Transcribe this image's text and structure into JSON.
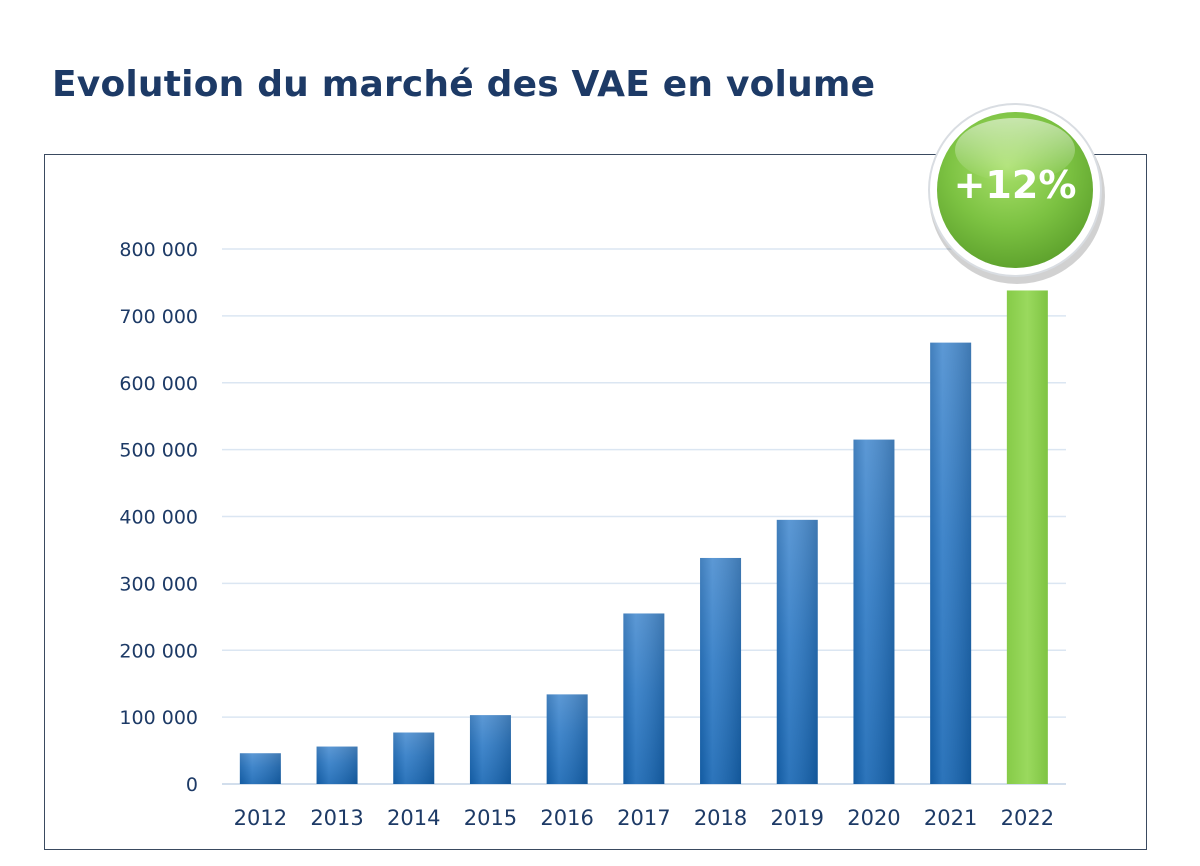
{
  "chart_data": {
    "type": "bar",
    "title": "Evolution du marché des VAE en volume",
    "categories": [
      "2012",
      "2013",
      "2014",
      "2015",
      "2016",
      "2017",
      "2018",
      "2019",
      "2020",
      "2021",
      "2022"
    ],
    "values": [
      46000,
      56000,
      77000,
      103000,
      134000,
      255000,
      338000,
      395000,
      515000,
      660000,
      738000
    ],
    "ylim": [
      0,
      800000
    ],
    "yticks": [
      0,
      100000,
      200000,
      300000,
      400000,
      500000,
      600000,
      700000,
      800000
    ],
    "ytick_labels": [
      "0",
      "100 000",
      "200 000",
      "300 000",
      "400 000",
      "500 000",
      "600 000",
      "700 000",
      "800 000"
    ],
    "xlabel": "",
    "ylabel": "",
    "grid": true,
    "highlight_index": 10,
    "annotation": "+12%",
    "colors": {
      "bar": "#2a78c4",
      "bar_dark": "#1565b3",
      "bar_light": "#4e8fd0",
      "highlight": "#8fd14f",
      "badge": "#7cc242",
      "title": "#1d3a66",
      "grid": "#dbe6f2"
    }
  }
}
